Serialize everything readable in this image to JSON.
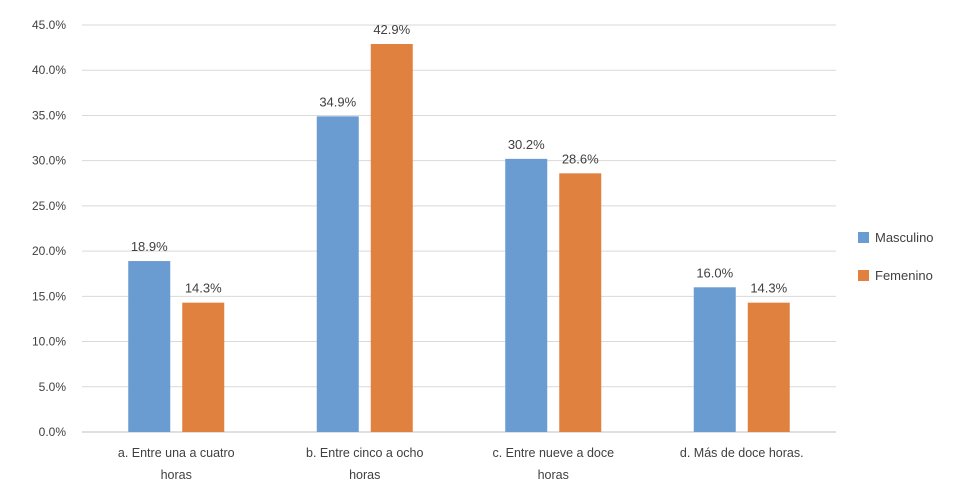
{
  "chart_data": {
    "type": "bar",
    "title": "",
    "xlabel": "",
    "ylabel": "",
    "categories": [
      [
        "a. Entre una a cuatro",
        "horas"
      ],
      [
        "b. Entre cinco a ocho",
        "horas"
      ],
      [
        "c. Entre nueve a doce",
        "horas"
      ],
      [
        "d. Más de doce horas."
      ]
    ],
    "series": [
      {
        "name": "Masculino",
        "color": "#6a9bd1",
        "values": [
          18.9,
          34.9,
          30.2,
          16.0
        ],
        "labels": [
          "18.9%",
          "34.9%",
          "30.2%",
          "16.0%"
        ]
      },
      {
        "name": "Femenino",
        "color": "#e0813f",
        "values": [
          14.3,
          42.9,
          28.6,
          14.3
        ],
        "labels": [
          "14.3%",
          "42.9%",
          "28.6%",
          "14.3%"
        ]
      }
    ],
    "ylim": [
      0,
      45
    ],
    "yticks": [
      "0.0%",
      "5.0%",
      "10.0%",
      "15.0%",
      "20.0%",
      "25.0%",
      "30.0%",
      "35.0%",
      "40.0%",
      "45.0%"
    ],
    "grid": true,
    "legend": "right"
  }
}
